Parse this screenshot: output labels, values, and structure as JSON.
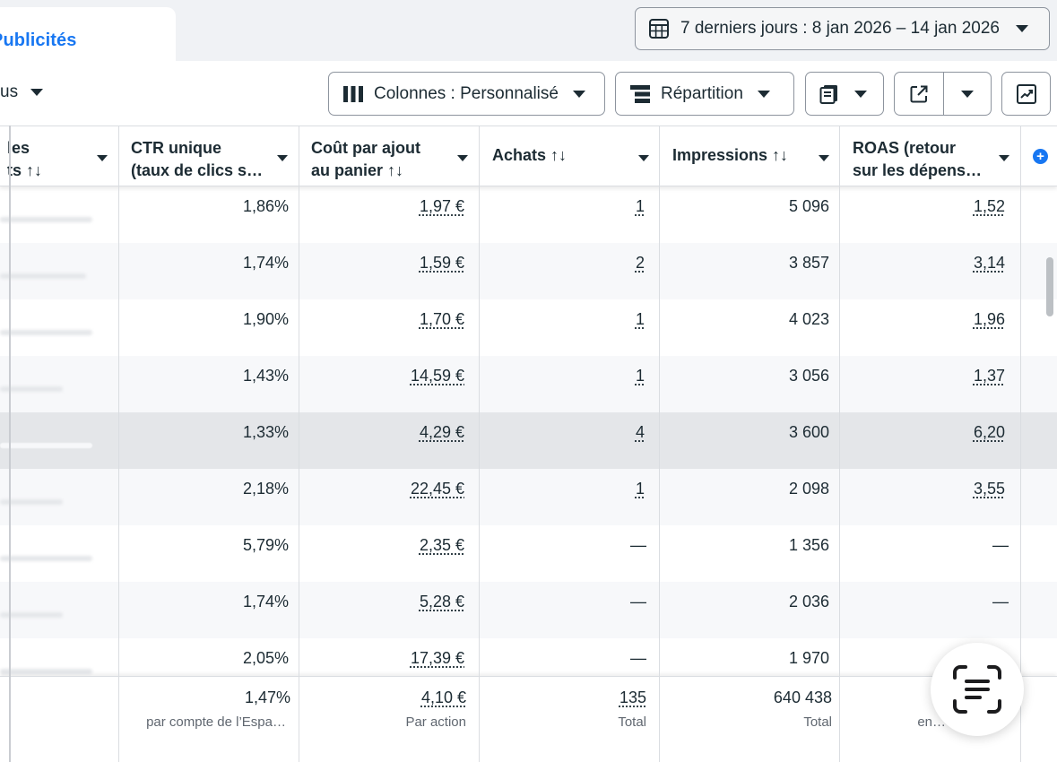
{
  "header": {
    "tab_label": "Publicités",
    "date_range": "7 derniers jours : 8 jan 2026 – 14 jan 2026"
  },
  "toolbar": {
    "left_partial": "us",
    "columns_label": "Colonnes : Personnalisé",
    "breakdown_label": "Répartition"
  },
  "table": {
    "columns": [
      {
        "line1": "les",
        "line2": "ts ↑↓"
      },
      {
        "line1": "CTR unique",
        "line2": "(taux de clics s…"
      },
      {
        "line1": "Coût par ajout",
        "line2": "au panier ↑↓"
      },
      {
        "line1": "Achats ↑↓",
        "line2": ""
      },
      {
        "line1": "Impressions ↑↓",
        "line2": ""
      },
      {
        "line1": "ROAS (retour",
        "line2": "sur les dépens…"
      }
    ],
    "rows": [
      {
        "ctr": "1,86%",
        "cpa": "1,97 €",
        "achats": "1",
        "impr": "5 096",
        "roas": "1,52"
      },
      {
        "ctr": "1,74%",
        "cpa": "1,59 €",
        "achats": "2",
        "impr": "3 857",
        "roas": "3,14"
      },
      {
        "ctr": "1,90%",
        "cpa": "1,70 €",
        "achats": "1",
        "impr": "4 023",
        "roas": "1,96"
      },
      {
        "ctr": "1,43%",
        "cpa": "14,59 €",
        "achats": "1",
        "impr": "3 056",
        "roas": "1,37"
      },
      {
        "ctr": "1,33%",
        "cpa": "4,29 €",
        "achats": "4",
        "impr": "3 600",
        "roas": "6,20"
      },
      {
        "ctr": "2,18%",
        "cpa": "22,45 €",
        "achats": "1",
        "impr": "2 098",
        "roas": "3,55"
      },
      {
        "ctr": "5,79%",
        "cpa": "2,35 €",
        "achats": "—",
        "impr": "1 356",
        "roas": "—"
      },
      {
        "ctr": "1,74%",
        "cpa": "5,28 €",
        "achats": "—",
        "impr": "2 036",
        "roas": "—"
      },
      {
        "ctr": "2,05%",
        "cpa": "17,39 €",
        "achats": "—",
        "impr": "1 970",
        "roas": ""
      }
    ],
    "footer": {
      "ctr": "1,47%",
      "ctr_sub": "par compte de l’Espa…",
      "cpa": "4,10 €",
      "cpa_sub": "Par action",
      "achats": "135",
      "achats_sub": "Total",
      "impr": "640 438",
      "impr_sub": "Total",
      "roas_sub": "en…"
    }
  },
  "colors": {
    "accent": "#1877f2",
    "text": "#1c2b33",
    "muted": "#606770",
    "highlight_row": "#e4e6e9",
    "alt_row": "#f7f8fa"
  }
}
